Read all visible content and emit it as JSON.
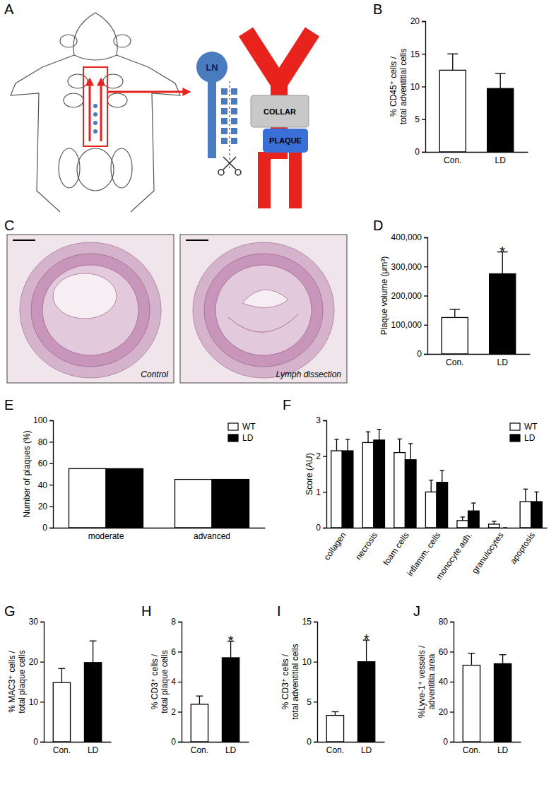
{
  "chart_data": [
    {
      "panel": "B",
      "type": "bar",
      "categories": [
        "Con.",
        "LD"
      ],
      "values": [
        12.5,
        9.7
      ],
      "errors": [
        2.5,
        2.3
      ],
      "colors": [
        "#ffffff",
        "#000000"
      ],
      "y_label": [
        "% CD45⁺ cells /",
        "total adventitial cells"
      ],
      "ylim": [
        0,
        20
      ],
      "yticks": [
        0,
        5,
        10,
        15,
        20
      ]
    },
    {
      "panel": "D",
      "type": "bar",
      "categories": [
        "Con.",
        "LD"
      ],
      "values": [
        125000,
        275000
      ],
      "errors": [
        28000,
        75000
      ],
      "colors": [
        "#ffffff",
        "#000000"
      ],
      "y_label": [
        "Plaque volume (μm³)"
      ],
      "ylim": [
        0,
        400000
      ],
      "yticks": [
        0,
        {
          "value": 100000,
          "label": "100,000"
        },
        {
          "value": 200000,
          "label": "200,000"
        },
        {
          "value": 300000,
          "label": "300,000"
        },
        {
          "value": 400000,
          "label": "400,000"
        }
      ],
      "annotations": [
        {
          "text": "*",
          "category": "LD"
        }
      ]
    },
    {
      "panel": "E",
      "type": "bar",
      "categories": [
        "moderate",
        "advanced"
      ],
      "series": [
        {
          "name": "WT",
          "color": "#ffffff",
          "values": [
            55,
            45
          ]
        },
        {
          "name": "LD",
          "color": "#000000",
          "values": [
            55,
            45
          ]
        }
      ],
      "legend": "upper right",
      "y_label": [
        "Number of plaques (%)"
      ],
      "ylim": [
        0,
        100
      ],
      "yticks": [
        0,
        20,
        40,
        60,
        80,
        100
      ]
    },
    {
      "panel": "F",
      "type": "bar",
      "categories": [
        "collagen",
        "necrosis",
        "foam cells",
        "inflamm. cells",
        "monocyte adh.",
        "granulocytes",
        "apoptosis"
      ],
      "series": [
        {
          "name": "WT",
          "color": "#ffffff",
          "values": [
            2.15,
            2.38,
            2.1,
            1.0,
            0.2,
            0.1,
            0.73
          ],
          "errors": [
            0.32,
            0.3,
            0.38,
            0.33,
            0.1,
            0.08,
            0.35
          ]
        },
        {
          "name": "LD",
          "color": "#000000",
          "values": [
            2.15,
            2.45,
            1.9,
            1.27,
            0.47,
            0,
            0.73
          ],
          "errors": [
            0.32,
            0.3,
            0.45,
            0.33,
            0.22,
            0,
            0.27
          ]
        }
      ],
      "legend": "upper right",
      "y_label": [
        "Score (AU)"
      ],
      "ylim": [
        0,
        3
      ],
      "yticks": [
        0,
        1,
        2,
        3
      ]
    },
    {
      "panel": "G",
      "type": "bar",
      "categories": [
        "Con.",
        "LD"
      ],
      "values": [
        14.8,
        19.8
      ],
      "errors": [
        3.5,
        5.4
      ],
      "colors": [
        "#ffffff",
        "#000000"
      ],
      "y_label": [
        "% MAC3⁺ cells /",
        "total plaque cells"
      ],
      "ylim": [
        0,
        30
      ],
      "yticks": [
        0,
        10,
        20,
        30
      ]
    },
    {
      "panel": "H",
      "type": "bar",
      "categories": [
        "Con.",
        "LD"
      ],
      "values": [
        2.5,
        5.6
      ],
      "errors": [
        0.55,
        1.1
      ],
      "colors": [
        "#ffffff",
        "#000000"
      ],
      "y_label": [
        "% CD3⁺ cells /",
        "total plaque cells"
      ],
      "ylim": [
        0,
        8
      ],
      "yticks": [
        0,
        2,
        4,
        6,
        8
      ],
      "annotations": [
        {
          "text": "*",
          "category": "LD"
        }
      ]
    },
    {
      "panel": "I",
      "type": "bar",
      "categories": [
        "Con.",
        "LD"
      ],
      "values": [
        3.3,
        10.0
      ],
      "errors": [
        0.45,
        2.7
      ],
      "colors": [
        "#ffffff",
        "#000000"
      ],
      "y_label": [
        "% CD3⁺ cells /",
        "total adventitial cells"
      ],
      "ylim": [
        0,
        15
      ],
      "yticks": [
        0,
        5,
        10,
        15
      ],
      "annotations": [
        {
          "text": "*",
          "category": "LD"
        }
      ]
    },
    {
      "panel": "J",
      "type": "bar",
      "categories": [
        "Con.",
        "LD"
      ],
      "values": [
        51,
        52
      ],
      "errors": [
        8,
        6
      ],
      "colors": [
        "#ffffff",
        "#000000"
      ],
      "y_label": [
        "%Lyve-1⁺ vessels /",
        "adventitia area"
      ],
      "ylim": [
        0,
        80
      ],
      "yticks": [
        0,
        20,
        40,
        60,
        80
      ]
    }
  ],
  "diagram": {
    "panel": "A",
    "labels": [
      "LN",
      "COLLAR",
      "PLAQUE"
    ]
  },
  "micrographs": {
    "panel": "C",
    "captions": [
      "Control",
      "Lymph dissection"
    ]
  }
}
